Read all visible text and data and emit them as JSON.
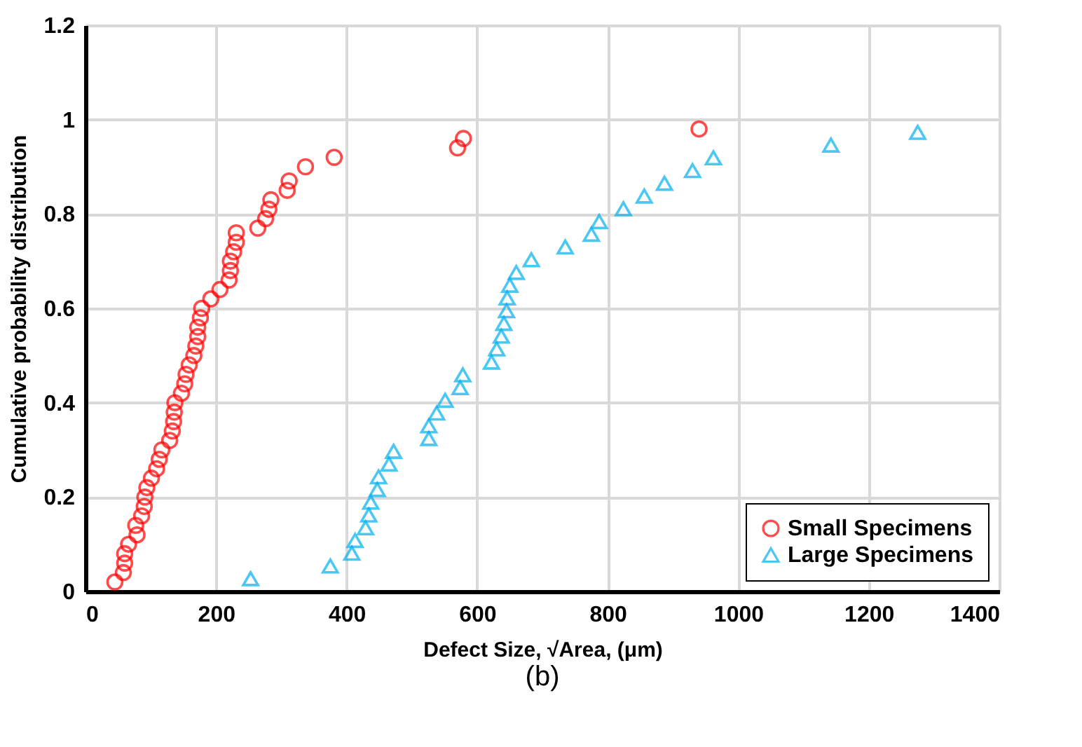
{
  "chart_data": {
    "type": "scatter",
    "xlabel": "Defect Size, √Area, (μm)",
    "ylabel": "Cumulative probability distribution",
    "annotations": [
      "(b)"
    ],
    "xlim": [
      0,
      1400
    ],
    "xticks": [
      0,
      200,
      400,
      600,
      800,
      1000,
      1200,
      1400
    ],
    "ylim": [
      0,
      1.2
    ],
    "yticks": [
      0,
      0.2,
      0.4,
      0.6,
      0.8,
      1,
      1.2
    ],
    "grid": true,
    "legend": "bottom right",
    "series": [
      {
        "name": "Small Specimens",
        "color": "#ff0000",
        "marker": "circle",
        "x": [
          45,
          58,
          60,
          60,
          66,
          79,
          77,
          86,
          90,
          91,
          94,
          101,
          109,
          113,
          117,
          129,
          133,
          135,
          136,
          137,
          147,
          152,
          154,
          159,
          166,
          169,
          172,
          172,
          176,
          178,
          192,
          206,
          220,
          222,
          222,
          227,
          231,
          231,
          264,
          276,
          281,
          284,
          309,
          312,
          337,
          381,
          570,
          579,
          940
        ],
        "values": [
          0.02,
          0.04,
          0.06,
          0.08,
          0.1,
          0.12,
          0.14,
          0.16,
          0.18,
          0.2,
          0.22,
          0.24,
          0.26,
          0.28,
          0.3,
          0.32,
          0.34,
          0.36,
          0.38,
          0.4,
          0.42,
          0.44,
          0.46,
          0.48,
          0.5,
          0.52,
          0.54,
          0.56,
          0.58,
          0.6,
          0.62,
          0.64,
          0.66,
          0.68,
          0.7,
          0.72,
          0.74,
          0.76,
          0.77,
          0.79,
          0.81,
          0.83,
          0.85,
          0.87,
          0.9,
          0.92,
          0.94,
          0.96,
          0.98
        ]
      },
      {
        "name": "Large Specimens",
        "color": "#00b0f0",
        "marker": "triangle",
        "x": [
          253,
          375,
          408,
          413,
          429,
          434,
          437,
          447,
          449,
          465,
          472,
          526,
          526,
          538,
          551,
          574,
          578,
          622,
          630,
          637,
          641,
          645,
          646,
          650,
          660,
          683,
          735,
          775,
          787,
          824,
          856,
          887,
          930,
          962,
          1142,
          1275
        ],
        "values": [
          0.027,
          0.054,
          0.081,
          0.108,
          0.135,
          0.162,
          0.189,
          0.216,
          0.243,
          0.27,
          0.297,
          0.324,
          0.351,
          0.378,
          0.405,
          0.432,
          0.459,
          0.486,
          0.514,
          0.541,
          0.568,
          0.595,
          0.622,
          0.649,
          0.676,
          0.703,
          0.73,
          0.757,
          0.784,
          0.811,
          0.838,
          0.865,
          0.892,
          0.919,
          0.946,
          0.973
        ]
      }
    ]
  }
}
